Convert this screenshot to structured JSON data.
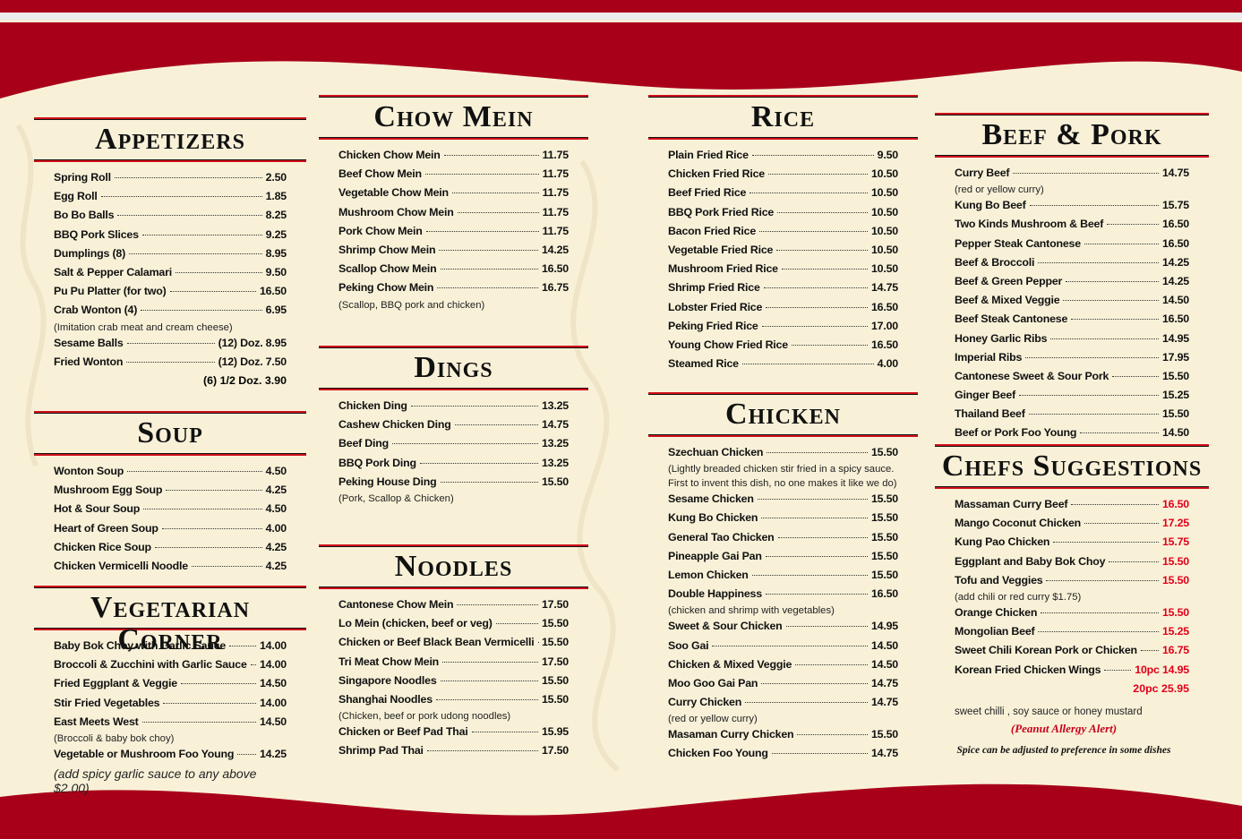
{
  "columns": [
    {
      "sections": [
        {
          "title": "Appetizers",
          "items": [
            {
              "name": "Spring Roll",
              "price": "2.50"
            },
            {
              "name": "Egg Roll",
              "price": "1.85"
            },
            {
              "name": "Bo Bo Balls",
              "price": "8.25"
            },
            {
              "name": "BBQ Pork Slices",
              "price": "9.25"
            },
            {
              "name": "Dumplings (8)",
              "price": "8.95"
            },
            {
              "name": "Salt & Pepper Calamari",
              "price": "9.50"
            },
            {
              "name": "Pu Pu Platter (for two)",
              "price": "16.50"
            },
            {
              "name": "Crab Wonton (4)",
              "price": "6.95",
              "note": "(Imitation crab meat and cream cheese)"
            },
            {
              "name": "Sesame Balls",
              "price": "(12) Doz. 8.95"
            },
            {
              "name": "Fried Wonton",
              "price": "(12) Doz. 7.50",
              "extra": "(6) 1/2 Doz. 3.90"
            }
          ]
        },
        {
          "title": "Soup",
          "items": [
            {
              "name": "Wonton Soup",
              "price": "4.50"
            },
            {
              "name": "Mushroom Egg Soup",
              "price": "4.25"
            },
            {
              "name": "Hot & Sour Soup",
              "price": "4.50"
            },
            {
              "name": "Heart of Green Soup",
              "price": "4.00"
            },
            {
              "name": "Chicken Rice Soup",
              "price": "4.25"
            },
            {
              "name": "Chicken Vermicelli Noodle",
              "price": "4.25"
            }
          ]
        },
        {
          "title": "Vegetarian Corner",
          "items": [
            {
              "name": "Baby Bok Choy with Garlic Sauce",
              "price": "14.00"
            },
            {
              "name": "Broccoli & Zucchini with Garlic Sauce",
              "price": "14.00"
            },
            {
              "name": "Fried Eggplant & Veggie",
              "price": "14.50"
            },
            {
              "name": "Stir Fried Vegetables",
              "price": "14.00"
            },
            {
              "name": "East Meets West",
              "price": "14.50",
              "note": "(Broccoli & baby bok choy)"
            },
            {
              "name": "Vegetable or Mushroom Foo Young",
              "price": "14.25"
            }
          ],
          "remark": "(add spicy garlic sauce to any above $2.00)"
        }
      ]
    },
    {
      "sections": [
        {
          "title": "Chow Mein",
          "items": [
            {
              "name": "Chicken Chow Mein",
              "price": "11.75"
            },
            {
              "name": "Beef Chow Mein",
              "price": "11.75"
            },
            {
              "name": "Vegetable Chow Mein",
              "price": "11.75"
            },
            {
              "name": "Mushroom Chow Mein",
              "price": "11.75"
            },
            {
              "name": "Pork Chow Mein",
              "price": "11.75"
            },
            {
              "name": "Shrimp Chow Mein",
              "price": "14.25"
            },
            {
              "name": "Scallop Chow Mein",
              "price": "16.50"
            },
            {
              "name": "Peking Chow Mein",
              "price": "16.75",
              "note": "(Scallop, BBQ pork and chicken)"
            }
          ]
        },
        {
          "title": "Dings",
          "items": [
            {
              "name": "Chicken Ding",
              "price": "13.25"
            },
            {
              "name": "Cashew Chicken Ding",
              "price": "14.75"
            },
            {
              "name": "Beef Ding",
              "price": "13.25"
            },
            {
              "name": "BBQ Pork Ding",
              "price": "13.25"
            },
            {
              "name": "Peking House Ding",
              "price": "15.50",
              "note": "(Pork, Scallop & Chicken)"
            }
          ]
        },
        {
          "title": "Noodles",
          "items": [
            {
              "name": "Cantonese Chow Mein",
              "price": "17.50"
            },
            {
              "name": "Lo Mein (chicken, beef or veg)",
              "price": "15.50"
            },
            {
              "name": "Chicken or Beef Black Bean Vermicelli",
              "price": "15.50"
            },
            {
              "name": "Tri Meat Chow Mein",
              "price": "17.50"
            },
            {
              "name": "Singapore Noodles",
              "price": "15.50"
            },
            {
              "name": "Shanghai Noodles",
              "price": "15.50",
              "note": "(Chicken, beef or pork udong noodles)"
            },
            {
              "name": "Chicken or Beef Pad Thai",
              "price": "15.95"
            },
            {
              "name": "Shrimp Pad Thai",
              "price": "17.50"
            }
          ]
        }
      ]
    },
    {
      "sections": [
        {
          "title": "Rice",
          "items": [
            {
              "name": "Plain Fried Rice",
              "price": "9.50"
            },
            {
              "name": "Chicken Fried Rice",
              "price": "10.50"
            },
            {
              "name": "Beef Fried Rice",
              "price": "10.50"
            },
            {
              "name": "BBQ Pork Fried Rice",
              "price": "10.50"
            },
            {
              "name": "Bacon Fried Rice",
              "price": "10.50"
            },
            {
              "name": "Vegetable Fried Rice",
              "price": "10.50"
            },
            {
              "name": "Mushroom Fried Rice",
              "price": "10.50"
            },
            {
              "name": "Shrimp Fried Rice",
              "price": "14.75"
            },
            {
              "name": "Lobster Fried Rice",
              "price": "16.50"
            },
            {
              "name": "Peking Fried Rice",
              "price": "17.00"
            },
            {
              "name": "Young Chow Fried Rice",
              "price": "16.50"
            },
            {
              "name": "Steamed Rice",
              "price": "4.00"
            }
          ]
        },
        {
          "title": "Chicken",
          "items": [
            {
              "name": "Szechuan Chicken",
              "price": "15.50",
              "note": "(Lightly breaded chicken stir fried in a spicy sauce. First to invent this dish, no one makes it like we do)"
            },
            {
              "name": "Sesame Chicken",
              "price": "15.50"
            },
            {
              "name": "Kung Bo Chicken",
              "price": "15.50"
            },
            {
              "name": "General Tao Chicken",
              "price": "15.50"
            },
            {
              "name": "Pineapple Gai Pan",
              "price": "15.50"
            },
            {
              "name": "Lemon Chicken",
              "price": "15.50"
            },
            {
              "name": "Double Happiness",
              "price": "16.50",
              "note": "(chicken and shrimp with vegetables)"
            },
            {
              "name": "Sweet & Sour Chicken",
              "price": "14.95"
            },
            {
              "name": "Soo Gai",
              "price": "14.50"
            },
            {
              "name": "Chicken & Mixed Veggie",
              "price": "14.50"
            },
            {
              "name": "Moo Goo Gai Pan",
              "price": "14.75"
            },
            {
              "name": "Curry Chicken",
              "price": "14.75",
              "note": "(red or yellow curry)"
            },
            {
              "name": "Masaman Curry Chicken",
              "price": "15.50"
            },
            {
              "name": "Chicken Foo Young",
              "price": "14.75"
            }
          ]
        }
      ]
    },
    {
      "sections": [
        {
          "title": "Beef & Pork",
          "items": [
            {
              "name": "Curry Beef",
              "price": "14.75",
              "note": "(red or yellow curry)"
            },
            {
              "name": "Kung Bo Beef",
              "price": "15.75"
            },
            {
              "name": "Two Kinds Mushroom & Beef",
              "price": "16.50"
            },
            {
              "name": "Pepper Steak Cantonese",
              "price": "16.50"
            },
            {
              "name": "Beef & Broccoli",
              "price": "14.25"
            },
            {
              "name": "Beef & Green Pepper",
              "price": "14.25"
            },
            {
              "name": "Beef & Mixed Veggie",
              "price": "14.50"
            },
            {
              "name": "Beef Steak Cantonese",
              "price": "16.50"
            },
            {
              "name": "Honey Garlic Ribs",
              "price": "14.95"
            },
            {
              "name": "Imperial Ribs",
              "price": "17.95"
            },
            {
              "name": "Cantonese Sweet & Sour Pork",
              "price": "15.50"
            },
            {
              "name": "Ginger Beef",
              "price": "15.25"
            },
            {
              "name": "Thailand Beef",
              "price": "15.50"
            },
            {
              "name": "Beef or Pork Foo Young",
              "price": "14.50"
            }
          ]
        },
        {
          "title": "Chefs Suggestions",
          "price_color": "#e2001a",
          "items": [
            {
              "name": "Massaman Curry Beef",
              "price": "16.50"
            },
            {
              "name": "Mango Coconut Chicken",
              "price": "17.25"
            },
            {
              "name": "Kung Pao Chicken",
              "price": "15.75"
            },
            {
              "name": "Eggplant and Baby Bok Choy",
              "price": "15.50"
            },
            {
              "name": "Tofu and Veggies",
              "price": "15.50",
              "note": "(add chili or red curry $1.75)"
            },
            {
              "name": "Orange Chicken",
              "price": "15.50"
            },
            {
              "name": "Mongolian Beef",
              "price": "15.25"
            },
            {
              "name": "Sweet Chili Korean Pork or Chicken",
              "price": "16.75"
            },
            {
              "name": "Korean Fried Chicken Wings",
              "price": "10pc 14.95",
              "extra": "20pc 25.95"
            }
          ],
          "footnote": "sweet chilli ,  soy sauce or honey mustard"
        }
      ],
      "alert": "(Peanut Allergy Alert)",
      "spice_note": "Spice can be adjusted to preference in some dishes"
    }
  ]
}
